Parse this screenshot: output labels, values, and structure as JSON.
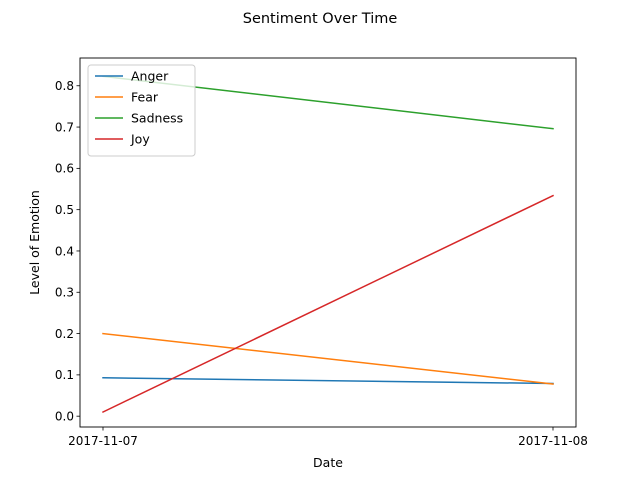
{
  "chart_data": {
    "type": "line",
    "title": "Sentiment Over Time",
    "xlabel": "Date",
    "ylabel": "Level of Emotion",
    "x": [
      "2017-11-07",
      "2017-11-08"
    ],
    "ylim": [
      -0.0262,
      0.8672
    ],
    "yticks": [
      0.0,
      0.1,
      0.2,
      0.3,
      0.4,
      0.5,
      0.6,
      0.7,
      0.8
    ],
    "ytick_labels": [
      "0.0",
      "0.1",
      "0.2",
      "0.3",
      "0.4",
      "0.5",
      "0.6",
      "0.7",
      "0.8"
    ],
    "grid": false,
    "legend_position": "top-left",
    "series": [
      {
        "name": "Anger",
        "color": "#1f77b4",
        "values": [
          0.093,
          0.079
        ]
      },
      {
        "name": "Fear",
        "color": "#ff7f0e",
        "values": [
          0.2,
          0.078
        ]
      },
      {
        "name": "Sadness",
        "color": "#2ca02c",
        "values": [
          0.823,
          0.696
        ]
      },
      {
        "name": "Joy",
        "color": "#d62728",
        "values": [
          0.01,
          0.534
        ]
      }
    ]
  }
}
